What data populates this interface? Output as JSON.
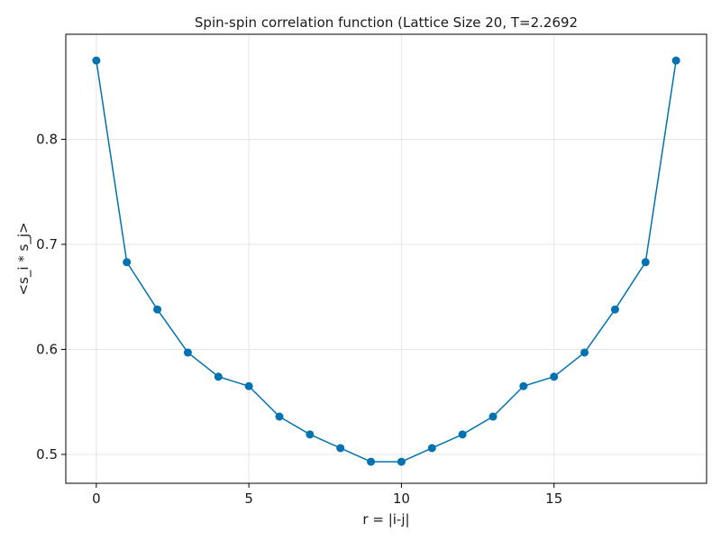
{
  "chart_data": {
    "type": "line",
    "title": "Spin-spin correlation function (Lattice Size 20, T=2.2692",
    "xlabel": "r = |i-j|",
    "ylabel": "<s_i * s_j>",
    "xlim": [
      -1.0,
      20.0
    ],
    "ylim": [
      0.4725,
      0.9
    ],
    "x_ticks": [
      0,
      5,
      10,
      15
    ],
    "y_ticks": [
      0.5,
      0.6,
      0.7,
      0.8
    ],
    "x_tick_labels": [
      "0",
      "5",
      "10",
      "15"
    ],
    "y_tick_labels": [
      "0.5",
      "0.6",
      "0.7",
      "0.8"
    ],
    "grid": true,
    "legend": "none",
    "series": [
      {
        "color": "#0072b2",
        "marker": "circle",
        "x": [
          0,
          1,
          2,
          3,
          4,
          5,
          6,
          7,
          8,
          9,
          10,
          11,
          12,
          13,
          14,
          15,
          16,
          17,
          18,
          19
        ],
        "y": [
          0.875,
          0.683,
          0.638,
          0.597,
          0.574,
          0.565,
          0.536,
          0.519,
          0.506,
          0.493,
          0.493,
          0.506,
          0.519,
          0.536,
          0.565,
          0.574,
          0.597,
          0.638,
          0.683,
          0.875
        ]
      }
    ]
  }
}
